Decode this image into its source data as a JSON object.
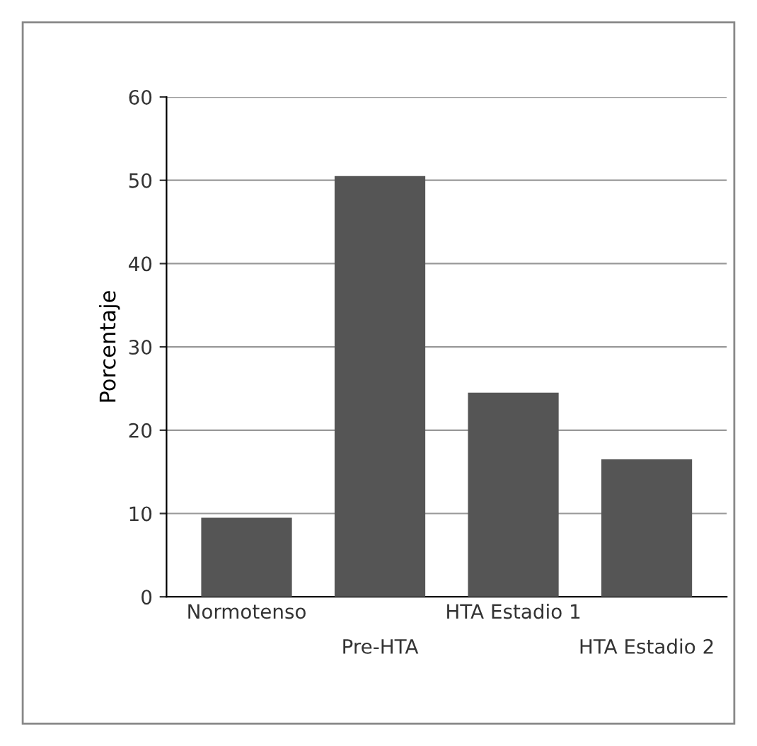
{
  "chart_data": {
    "type": "bar",
    "ylabel": "Porcentaje",
    "categories": [
      "Normotenso",
      "Pre-HTA",
      "HTA Estadio 1",
      "HTA Estadio 2"
    ],
    "values": [
      9.5,
      50.5,
      24.5,
      16.5
    ],
    "color": "#555555",
    "ylim": [
      0,
      60
    ],
    "yticks": [
      0,
      10,
      20,
      30,
      40,
      50,
      60
    ],
    "grid": "y"
  }
}
